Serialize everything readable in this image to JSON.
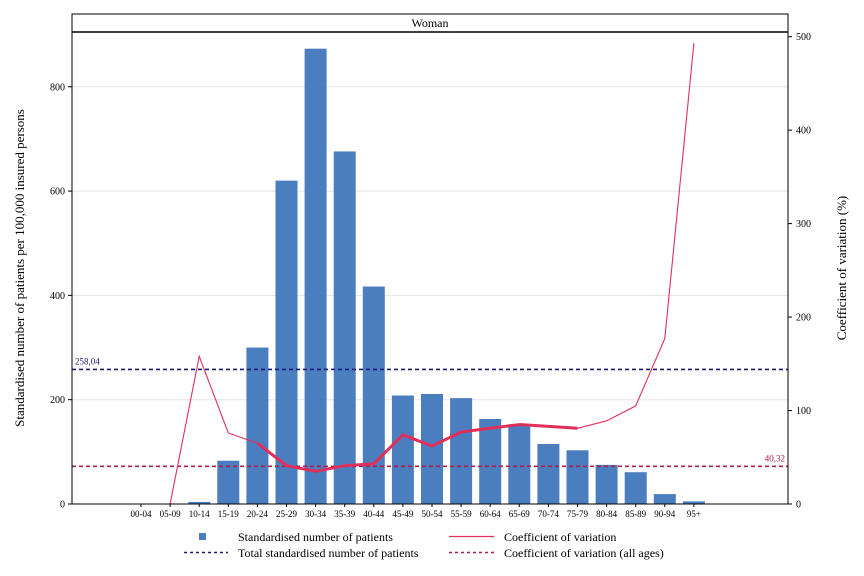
{
  "chart_data": {
    "type": "bar",
    "panel_title": "Woman",
    "categories": [
      "00-04",
      "05-09",
      "10-14",
      "15-19",
      "20-24",
      "25-29",
      "30-34",
      "35-39",
      "40-44",
      "45-49",
      "50-54",
      "55-59",
      "60-64",
      "65-69",
      "70-74",
      "75-79",
      "80-84",
      "85-89",
      "90-94",
      "95+"
    ],
    "series": [
      {
        "name": "Standardised number of patients",
        "axis": "left",
        "type": "bar",
        "color": "#4a7ebf",
        "values": [
          0,
          0,
          4,
          83,
          300,
          620,
          873,
          676,
          417,
          208,
          211,
          203,
          163,
          153,
          115,
          103,
          75,
          61,
          19,
          5
        ]
      },
      {
        "name": "Coefficient of variation",
        "axis": "right",
        "type": "line",
        "color": "#e0305a",
        "values": [
          null,
          0,
          158,
          76,
          65,
          41,
          35,
          41,
          43,
          74,
          62,
          77,
          81,
          85,
          83,
          81,
          89,
          105,
          177,
          493
        ]
      }
    ],
    "reference_lines": [
      {
        "name": "Total standardised number of patients",
        "axis": "left",
        "value": 258.04,
        "label": "258,04",
        "color": "#1a1a7a"
      },
      {
        "name": "Coefficient of variation (all ages)",
        "axis": "right",
        "value": 40.32,
        "label": "40,32",
        "color": "#b01e4a"
      }
    ],
    "ylabel": "Standardised number of patients per 100,000 insured persons",
    "y2label": "Coefficient of variation (%)",
    "ylim": [
      0,
      905
    ],
    "y2lim": [
      0,
      505
    ],
    "yticks": [
      0,
      200,
      400,
      600,
      800
    ],
    "y2ticks": [
      0,
      100,
      200,
      300,
      400,
      500
    ],
    "grid": true,
    "legend_position": "bottom",
    "highlight_range": [
      "20-24",
      "75-79"
    ]
  },
  "legend": [
    {
      "label": "Standardised number of patients",
      "symbol": "square"
    },
    {
      "label": "Coefficient of variation",
      "symbol": "solid-line"
    },
    {
      "label": "Total standardised number of patients",
      "symbol": "dashed-navy"
    },
    {
      "label": "Coefficient of variation (all ages)",
      "symbol": "dashed-red"
    }
  ]
}
